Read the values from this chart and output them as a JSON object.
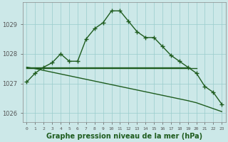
{
  "hours": [
    0,
    1,
    2,
    3,
    4,
    5,
    6,
    7,
    8,
    9,
    10,
    11,
    12,
    13,
    14,
    15,
    16,
    17,
    18,
    19,
    20,
    21,
    22,
    23
  ],
  "main_line": [
    1027.05,
    1027.35,
    1027.55,
    1027.7,
    1028.0,
    1027.75,
    1027.75,
    1028.5,
    1028.85,
    1029.05,
    1029.45,
    1029.45,
    1029.1,
    1028.75,
    1028.55,
    1028.55,
    1028.25,
    1027.95,
    1027.75,
    1027.55,
    1027.35,
    1026.9,
    1026.7,
    1026.3
  ],
  "flat_line1_x": [
    0,
    1,
    2,
    3,
    4,
    5,
    6,
    7,
    8,
    9,
    10,
    11,
    12,
    13,
    14,
    15,
    16,
    17,
    18,
    19
  ],
  "flat_line1_y": [
    1027.55,
    1027.55,
    1027.55,
    1027.55,
    1027.55,
    1027.55,
    1027.55,
    1027.55,
    1027.55,
    1027.55,
    1027.55,
    1027.55,
    1027.55,
    1027.55,
    1027.55,
    1027.55,
    1027.55,
    1027.55,
    1027.55,
    1027.55
  ],
  "flat_line2_x": [
    0,
    1,
    2,
    3,
    4,
    5,
    6,
    7,
    8,
    9,
    10,
    11,
    12,
    13,
    14,
    15,
    16,
    17,
    18,
    19,
    20
  ],
  "flat_line2_y": [
    1027.52,
    1027.52,
    1027.52,
    1027.52,
    1027.52,
    1027.52,
    1027.52,
    1027.52,
    1027.52,
    1027.52,
    1027.52,
    1027.52,
    1027.52,
    1027.52,
    1027.52,
    1027.52,
    1027.52,
    1027.52,
    1027.52,
    1027.52,
    1027.52
  ],
  "diagonal_line_x": [
    0,
    1,
    2,
    3,
    4,
    5,
    6,
    7,
    8,
    9,
    10,
    11,
    12,
    13,
    14,
    15,
    16,
    17,
    18,
    19,
    20,
    21,
    22,
    23
  ],
  "diagonal_line_y": [
    1027.55,
    1027.5,
    1027.44,
    1027.38,
    1027.32,
    1027.26,
    1027.2,
    1027.14,
    1027.08,
    1027.02,
    1026.96,
    1026.9,
    1026.84,
    1026.78,
    1026.72,
    1026.66,
    1026.6,
    1026.54,
    1026.48,
    1026.42,
    1026.35,
    1026.25,
    1026.15,
    1026.05
  ],
  "bg_color": "#cce8e8",
  "grid_color": "#99cccc",
  "line_color": "#1e5c1e",
  "marker": "+",
  "markersize": 4,
  "linewidth": 1.0,
  "title": "Graphe pression niveau de la mer (hPa)",
  "ylim": [
    1025.7,
    1029.75
  ],
  "yticks": [
    1026,
    1027,
    1028,
    1029
  ],
  "title_fontsize": 7.0
}
